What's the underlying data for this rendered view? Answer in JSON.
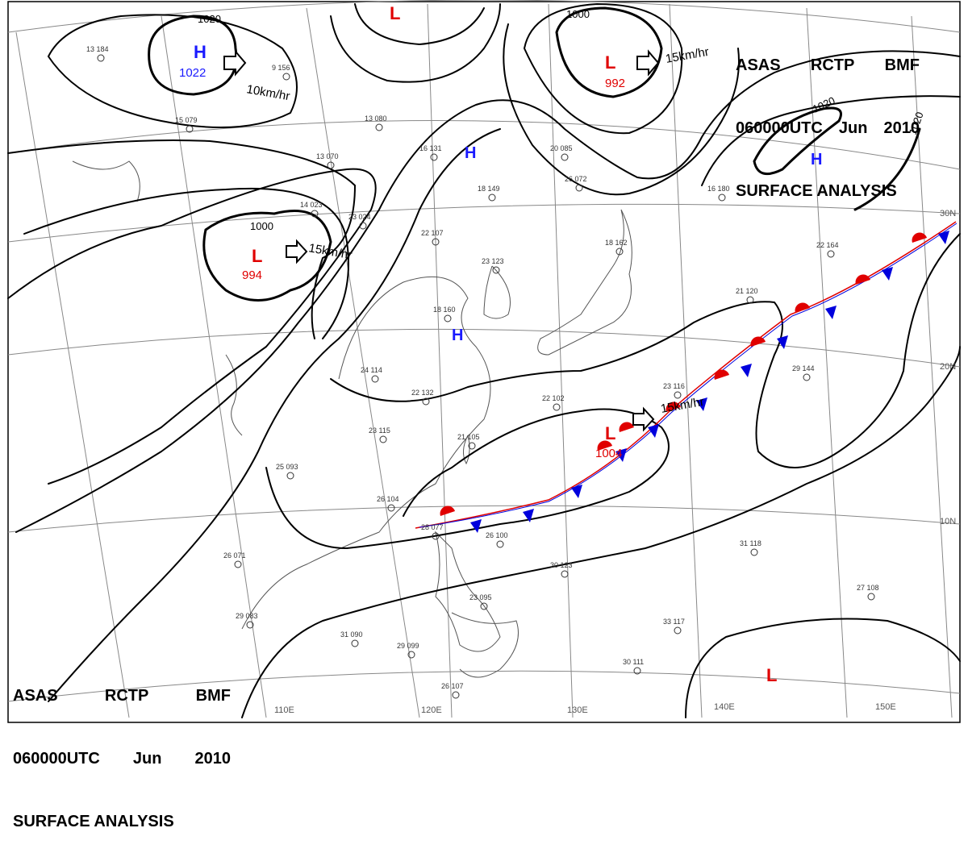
{
  "header": {
    "line1": [
      "ASAS",
      "RCTP",
      "BMF"
    ],
    "line2": [
      "060000UTC",
      "Jun",
      "2010"
    ],
    "line3": "SURFACE ANALYSIS"
  },
  "colors": {
    "isobar": "#000000",
    "grid": "#888888",
    "coast": "#555555",
    "high": "#1a1aff",
    "low": "#e00000",
    "cold_front": "#0000dd",
    "warm_front": "#e00000",
    "station": "#333333"
  },
  "longitude_labels": [
    "110E",
    "120E",
    "130E",
    "140E",
    "150E"
  ],
  "latitude_labels": [
    "30N",
    "20N",
    "10N"
  ],
  "isobar_labels": [
    "1020",
    "1000",
    "1000",
    "1020",
    "1020"
  ],
  "motion_labels": [
    "10km/hr",
    "15km/hr",
    "15km/hr",
    "15km/hr"
  ],
  "pressure_centers": [
    {
      "type": "H",
      "value": "1022"
    },
    {
      "type": "L",
      "value": "994"
    },
    {
      "type": "L",
      "value": "992"
    },
    {
      "type": "L",
      "value": "1004"
    },
    {
      "type": "L",
      "value": ""
    },
    {
      "type": "L",
      "value": ""
    },
    {
      "type": "H",
      "value": ""
    },
    {
      "type": "H",
      "value": ""
    },
    {
      "type": "H",
      "value": ""
    }
  ],
  "station_samples": [
    "13 184",
    "15 079",
    "9 156",
    "13 080",
    "16 131",
    "18 149",
    "22 107",
    "23 123",
    "18 160",
    "24 114",
    "22 132",
    "23 115",
    "21 105",
    "25 093",
    "26 104",
    "28 077",
    "26 100",
    "30 123",
    "31 118",
    "27 108",
    "33 117",
    "30 111",
    "26 107",
    "29 083",
    "26 071",
    "31 090",
    "29 099",
    "23 095",
    "29 144",
    "22 164",
    "21 120",
    "16 180",
    "20 085",
    "26 072",
    "13 070",
    "23 024",
    "14 023",
    "18 162",
    "23 116",
    "22 102"
  ]
}
